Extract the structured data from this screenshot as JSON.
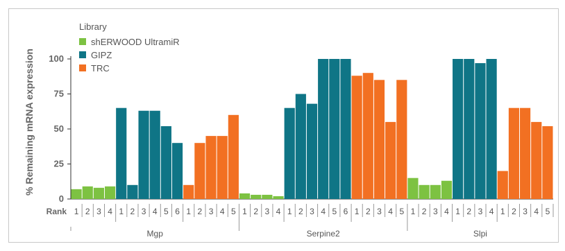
{
  "chart_data": {
    "type": "bar",
    "ylabel": "% Remaining mRNA expression",
    "xlabel_prefix": "Rank",
    "ylim": [
      0,
      100
    ],
    "yticks": [
      0,
      25,
      50,
      75,
      100
    ],
    "legend": {
      "title": "Library",
      "entries": [
        {
          "name": "shERWOOD UltramiR",
          "color": "#7dc242"
        },
        {
          "name": "GIPZ",
          "color": "#0f7586"
        },
        {
          "name": "TRC",
          "color": "#f27022"
        }
      ],
      "placement": "top-left"
    },
    "groups": [
      {
        "name": "Mgp",
        "series": [
          {
            "library": "shERWOOD UltramiR",
            "ranks": [
              "1",
              "2",
              "3",
              "4"
            ],
            "values": [
              7,
              9,
              8,
              9
            ]
          },
          {
            "library": "GIPZ",
            "ranks": [
              "1",
              "2",
              "3",
              "4",
              "5",
              "6"
            ],
            "values": [
              65,
              10,
              63,
              63,
              52,
              40
            ]
          },
          {
            "library": "TRC",
            "ranks": [
              "1",
              "2",
              "3",
              "4",
              "5"
            ],
            "values": [
              10,
              40,
              45,
              45,
              60
            ]
          }
        ]
      },
      {
        "name": "Serpine2",
        "series": [
          {
            "library": "shERWOOD UltramiR",
            "ranks": [
              "1",
              "2",
              "3",
              "4"
            ],
            "values": [
              4,
              3,
              3,
              2
            ]
          },
          {
            "library": "GIPZ",
            "ranks": [
              "1",
              "2",
              "3",
              "4",
              "5",
              "6"
            ],
            "values": [
              65,
              75,
              68,
              100,
              100,
              100
            ]
          },
          {
            "library": "TRC",
            "ranks": [
              "1",
              "2",
              "3",
              "4",
              "5"
            ],
            "values": [
              88,
              90,
              85,
              55,
              85
            ]
          }
        ]
      },
      {
        "name": "Slpi",
        "series": [
          {
            "library": "shERWOOD UltramiR",
            "ranks": [
              "1",
              "2",
              "3",
              "4"
            ],
            "values": [
              15,
              10,
              10,
              13
            ]
          },
          {
            "library": "GIPZ",
            "ranks": [
              "1",
              "2",
              "3",
              "4"
            ],
            "values": [
              100,
              100,
              97,
              100
            ]
          },
          {
            "library": "TRC",
            "ranks": [
              "1",
              "2",
              "3",
              "4",
              "5"
            ],
            "values": [
              20,
              65,
              65,
              55,
              52
            ]
          }
        ]
      }
    ]
  }
}
